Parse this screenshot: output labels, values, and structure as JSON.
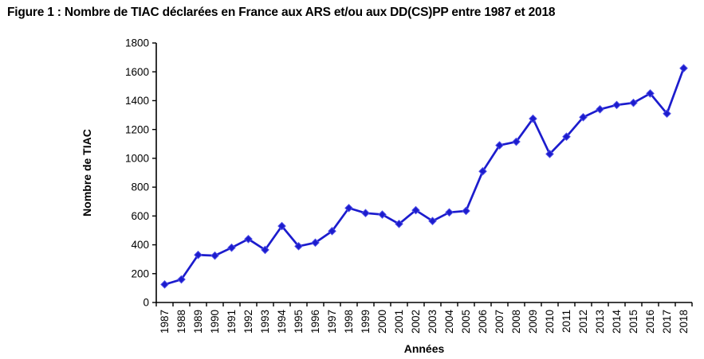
{
  "figure": {
    "title": "Figure 1 : Nombre de TIAC déclarées en France aux ARS et/ou aux DD(CS)PP entre 1987 et 2018"
  },
  "chart_data": {
    "type": "line",
    "title": "Figure 1 : Nombre de TIAC déclarées en France aux ARS et/ou aux DD(CS)PP entre 1987 et 2018",
    "xlabel": "Années",
    "ylabel": "Nombre de TIAC",
    "categories": [
      "1987",
      "1988",
      "1989",
      "1990",
      "1991",
      "1992",
      "1993",
      "1994",
      "1995",
      "1996",
      "1997",
      "1998",
      "1999",
      "2000",
      "2001",
      "2002",
      "2003",
      "2004",
      "2005",
      "2006",
      "2007",
      "2008",
      "2009",
      "2010",
      "2011",
      "2012",
      "2013",
      "2014",
      "2015",
      "2016",
      "2017",
      "2018"
    ],
    "series": [
      {
        "name": "Nombre de TIAC",
        "values": [
          125,
          160,
          330,
          325,
          380,
          440,
          365,
          530,
          390,
          415,
          495,
          655,
          620,
          610,
          545,
          640,
          565,
          625,
          635,
          910,
          1090,
          1115,
          1275,
          1030,
          1150,
          1285,
          1340,
          1370,
          1385,
          1450,
          1310,
          1625
        ]
      }
    ],
    "ylim": [
      0,
      1800
    ],
    "ytick_step": 200,
    "grid": false,
    "legend": false,
    "marker": "diamond",
    "line_color": "#1c1ccd",
    "marker_edge_color": "#4d4de8",
    "axis_color": "#000000",
    "background_color": "#ffffff"
  }
}
